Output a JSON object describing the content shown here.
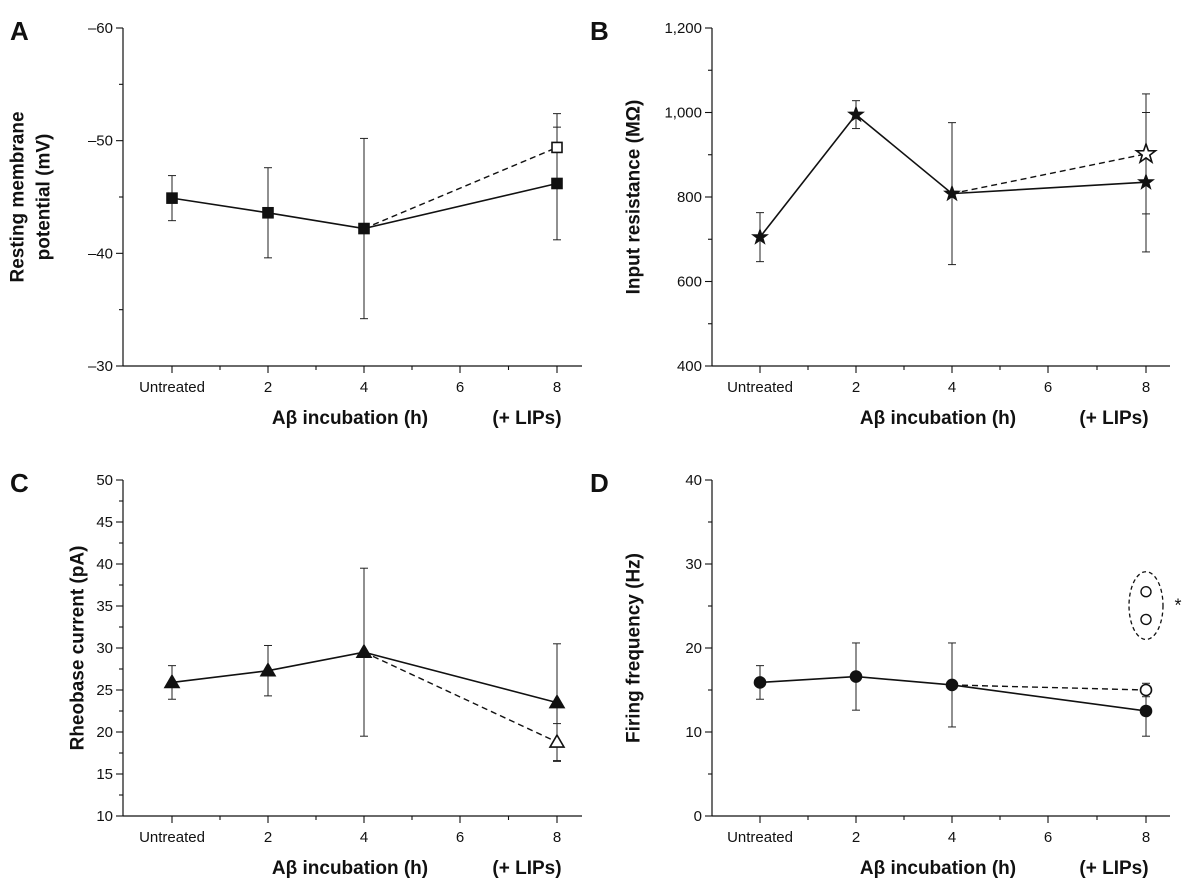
{
  "chart_data": [
    {
      "panel": "A",
      "type": "line",
      "ylabel": [
        "Resting membrane",
        "potential (mV)"
      ],
      "xlabel": "Aβ incubation (h)",
      "xlabel_suffix": "(+ LIPs)",
      "x_ticks": [
        {
          "x": 0,
          "label": "Untreated"
        },
        {
          "x": 2,
          "label": "2"
        },
        {
          "x": 4,
          "label": "4"
        },
        {
          "x": 6,
          "label": "6"
        },
        {
          "x": 8,
          "label": "8"
        }
      ],
      "y_ticks": [
        {
          "v": -60,
          "label": "–60"
        },
        {
          "v": -50,
          "label": "–50"
        },
        {
          "v": -40,
          "label": "–40"
        },
        {
          "v": -30,
          "label": "–30"
        }
      ],
      "ylim": [
        -60,
        -30
      ],
      "y_inverted": true,
      "marker": "square",
      "series": [
        {
          "style": "solid",
          "filled": true,
          "points": [
            {
              "x": 0,
              "y": -44.9,
              "err": 2.0
            },
            {
              "x": 2,
              "y": -43.6,
              "err": 4.0
            },
            {
              "x": 4,
              "y": -42.2,
              "err": 8.0
            },
            {
              "x": 8,
              "y": -46.2,
              "err": 5.0
            }
          ]
        },
        {
          "style": "dashed",
          "filled": false,
          "points": [
            {
              "x": 4,
              "y": -42.2
            },
            {
              "x": 8,
              "y": -49.4,
              "err": 3.0
            }
          ]
        }
      ]
    },
    {
      "panel": "B",
      "type": "line",
      "ylabel": [
        "Input resistance (MΩ)"
      ],
      "xlabel": "Aβ incubation (h)",
      "xlabel_suffix": "(+ LIPs)",
      "x_ticks": [
        {
          "x": 0,
          "label": "Untreated"
        },
        {
          "x": 2,
          "label": "2"
        },
        {
          "x": 4,
          "label": "4"
        },
        {
          "x": 6,
          "label": "6"
        },
        {
          "x": 8,
          "label": "8"
        }
      ],
      "y_ticks": [
        {
          "v": 400,
          "label": "400"
        },
        {
          "v": 600,
          "label": "600"
        },
        {
          "v": 800,
          "label": "800"
        },
        {
          "v": 1000,
          "label": "1,000"
        },
        {
          "v": 1200,
          "label": "1,200"
        }
      ],
      "ylim": [
        400,
        1200
      ],
      "marker": "star",
      "series": [
        {
          "style": "solid",
          "filled": true,
          "points": [
            {
              "x": 0,
              "y": 705,
              "err": 58
            },
            {
              "x": 2,
              "y": 995,
              "err": 33
            },
            {
              "x": 4,
              "y": 808,
              "err": 168
            },
            {
              "x": 8,
              "y": 835,
              "err": 165
            }
          ]
        },
        {
          "style": "dashed",
          "filled": false,
          "points": [
            {
              "x": 4,
              "y": 808
            },
            {
              "x": 8,
              "y": 902,
              "err": 142
            }
          ]
        }
      ]
    },
    {
      "panel": "C",
      "type": "line",
      "ylabel": [
        "Rheobase current (pA)"
      ],
      "xlabel": "Aβ incubation (h)",
      "xlabel_suffix": "(+ LIPs)",
      "x_ticks": [
        {
          "x": 0,
          "label": "Untreated"
        },
        {
          "x": 2,
          "label": "2"
        },
        {
          "x": 4,
          "label": "4"
        },
        {
          "x": 6,
          "label": "6"
        },
        {
          "x": 8,
          "label": "8"
        }
      ],
      "y_ticks": [
        {
          "v": 10,
          "label": "10"
        },
        {
          "v": 15,
          "label": "15"
        },
        {
          "v": 20,
          "label": "20"
        },
        {
          "v": 25,
          "label": "25"
        },
        {
          "v": 30,
          "label": "30"
        },
        {
          "v": 35,
          "label": "35"
        },
        {
          "v": 40,
          "label": "40"
        },
        {
          "v": 45,
          "label": "45"
        },
        {
          "v": 50,
          "label": "50"
        }
      ],
      "ylim": [
        10,
        50
      ],
      "marker": "triangle",
      "series": [
        {
          "style": "solid",
          "filled": true,
          "points": [
            {
              "x": 0,
              "y": 25.9,
              "err": 2.0
            },
            {
              "x": 2,
              "y": 27.3,
              "err": 3.0
            },
            {
              "x": 4,
              "y": 29.5,
              "err": 10.0
            },
            {
              "x": 8,
              "y": 23.5,
              "err": 7.0
            }
          ]
        },
        {
          "style": "dashed",
          "filled": false,
          "points": [
            {
              "x": 4,
              "y": 29.5
            },
            {
              "x": 8,
              "y": 18.8,
              "err": 2.2
            }
          ]
        }
      ]
    },
    {
      "panel": "D",
      "type": "line",
      "ylabel": [
        "Firing frequency (Hz)"
      ],
      "xlabel": "Aβ incubation (h)",
      "xlabel_suffix": "(+ LIPs)",
      "x_ticks": [
        {
          "x": 0,
          "label": "Untreated"
        },
        {
          "x": 2,
          "label": "2"
        },
        {
          "x": 4,
          "label": "4"
        },
        {
          "x": 6,
          "label": "6"
        },
        {
          "x": 8,
          "label": "8"
        }
      ],
      "y_ticks": [
        {
          "v": 0,
          "label": "0"
        },
        {
          "v": 10,
          "label": "10"
        },
        {
          "v": 20,
          "label": "20"
        },
        {
          "v": 30,
          "label": "30"
        },
        {
          "v": 40,
          "label": "40"
        }
      ],
      "ylim": [
        0,
        40
      ],
      "marker": "circle",
      "series": [
        {
          "style": "solid",
          "filled": true,
          "points": [
            {
              "x": 0,
              "y": 15.9,
              "err": 2.0
            },
            {
              "x": 2,
              "y": 16.6,
              "err": 4.0
            },
            {
              "x": 4,
              "y": 15.6,
              "err": 5.0
            },
            {
              "x": 8,
              "y": 12.5,
              "err": 3.0
            }
          ]
        },
        {
          "style": "dashed",
          "filled": false,
          "points": [
            {
              "x": 4,
              "y": 15.6
            },
            {
              "x": 8,
              "y": 15.0,
              "err": 0.8
            }
          ]
        }
      ],
      "outliers": [
        {
          "x": 8,
          "y": 26.7
        },
        {
          "x": 8,
          "y": 23.4
        }
      ],
      "outlier_annotation": "*"
    }
  ]
}
